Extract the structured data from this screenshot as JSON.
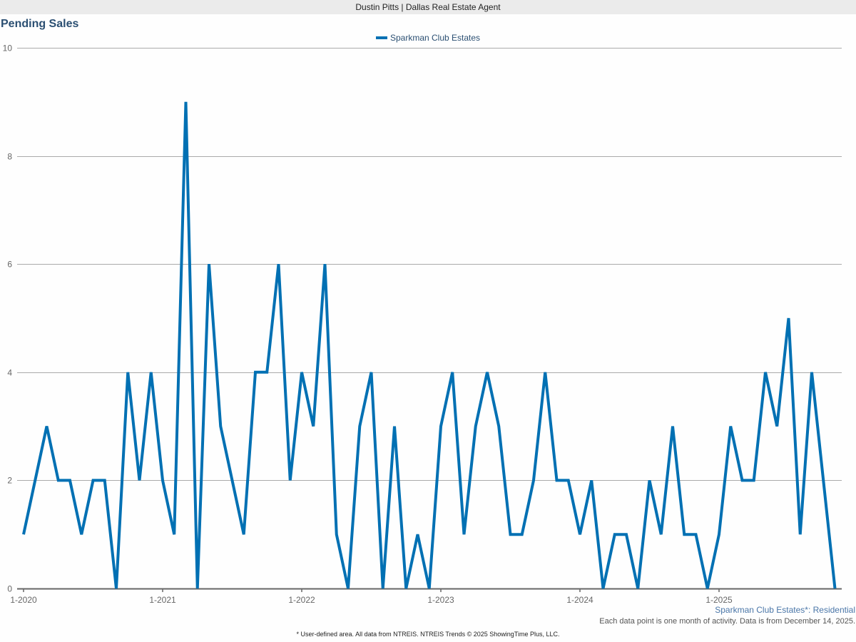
{
  "header": {
    "title": "Dustin Pitts | Dallas Real Estate Agent"
  },
  "chart_title": "Pending Sales",
  "legend": {
    "label": "Sparkman Club Estates",
    "color": "#0070b3"
  },
  "series_caption": "Sparkman Club Estates*: Residential",
  "note": "Each data point is one month of activity. Data is from December 14, 2025.",
  "footnote": "* User-defined area. All data from NTREIS. NTREIS Trends © 2025 ShowingTime Plus, LLC.",
  "chart_data": {
    "type": "line",
    "title": "Pending Sales",
    "xlabel": "",
    "ylabel": "",
    "ylim": [
      0,
      10
    ],
    "yticks": [
      0,
      2,
      4,
      6,
      8,
      10
    ],
    "xticks": [
      "1-2020",
      "1-2021",
      "1-2022",
      "1-2023",
      "1-2024",
      "1-2025"
    ],
    "grid": true,
    "legend_position": "top",
    "x_start": "2020-01",
    "x_end": "2025-11",
    "series": [
      {
        "name": "Sparkman Club Estates",
        "color": "#0070b3",
        "values": [
          1,
          2,
          3,
          2,
          2,
          1,
          2,
          2,
          0,
          4,
          2,
          4,
          2,
          1,
          9,
          0,
          6,
          3,
          2,
          1,
          4,
          4,
          6,
          2,
          4,
          3,
          6,
          1,
          0,
          3,
          4,
          0,
          3,
          0,
          1,
          0,
          3,
          4,
          1,
          3,
          4,
          3,
          1,
          1,
          2,
          4,
          2,
          2,
          1,
          2,
          0,
          1,
          1,
          0,
          2,
          1,
          3,
          1,
          1,
          0,
          1,
          3,
          2,
          2,
          4,
          3,
          5,
          1,
          4,
          2,
          0
        ]
      }
    ]
  }
}
